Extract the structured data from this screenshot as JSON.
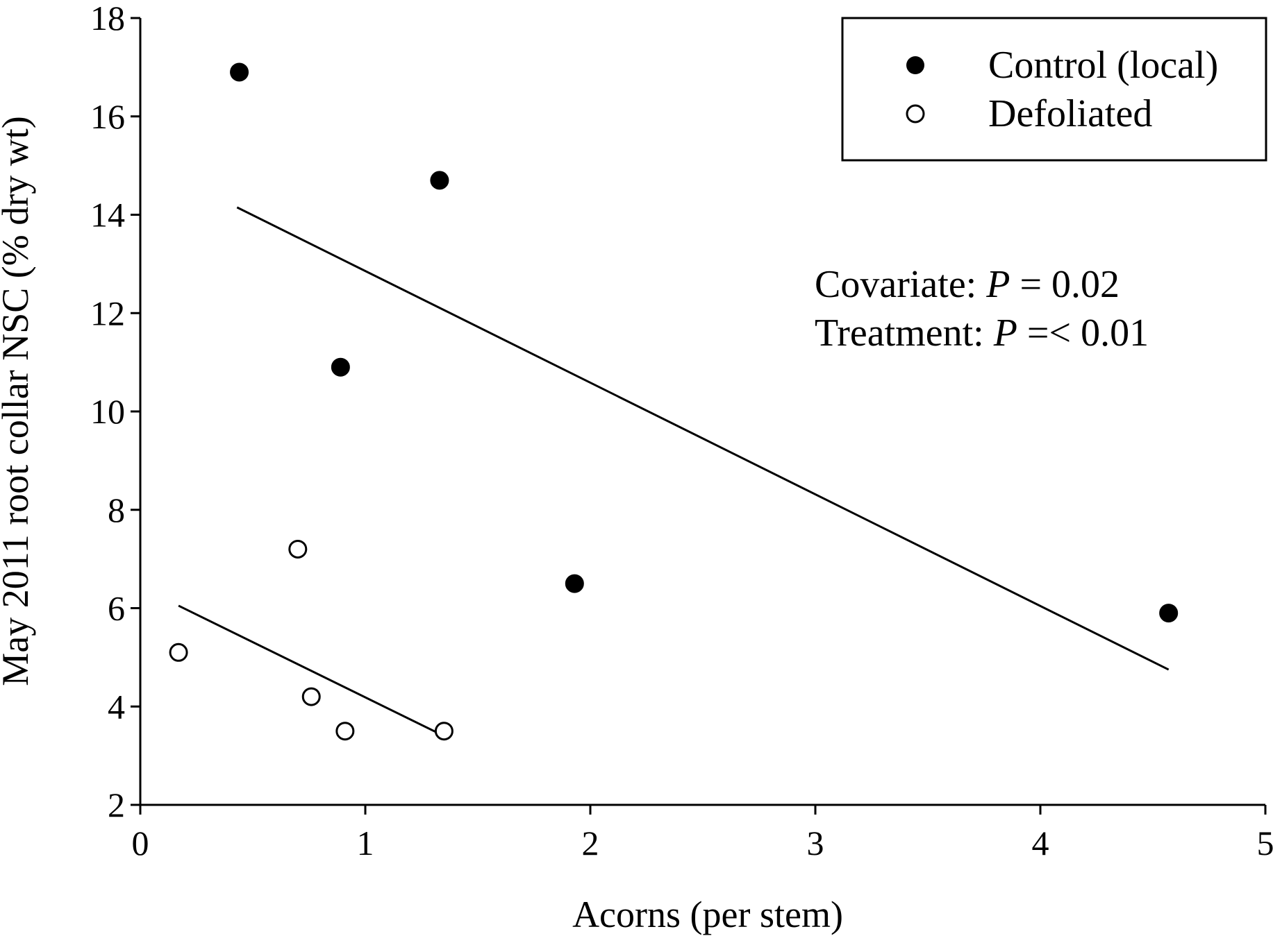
{
  "chart_data": {
    "type": "scatter",
    "title": "",
    "xlabel": "Acorns (per stem)",
    "ylabel": "May 2011 root collar NSC (% dry wt)",
    "xlim": [
      0,
      5
    ],
    "ylim": [
      2,
      18
    ],
    "xticks": [
      0,
      1,
      2,
      3,
      4,
      5
    ],
    "yticks": [
      2,
      4,
      6,
      8,
      10,
      12,
      14,
      16,
      18
    ],
    "grid": false,
    "legend_position": "top-right",
    "series": [
      {
        "name": "Control (local)",
        "marker": "filled-circle",
        "color": "#000000",
        "points": [
          {
            "x": 0.44,
            "y": 16.9
          },
          {
            "x": 1.33,
            "y": 14.7
          },
          {
            "x": 0.89,
            "y": 10.9
          },
          {
            "x": 1.93,
            "y": 6.5
          },
          {
            "x": 4.57,
            "y": 5.9
          }
        ],
        "fit_line": {
          "x": [
            0.43,
            4.57
          ],
          "y": [
            14.15,
            4.75
          ]
        }
      },
      {
        "name": "Defoliated",
        "marker": "open-circle",
        "color": "#000000",
        "points": [
          {
            "x": 0.17,
            "y": 5.1
          },
          {
            "x": 0.7,
            "y": 7.2
          },
          {
            "x": 0.76,
            "y": 4.2
          },
          {
            "x": 0.91,
            "y": 3.5
          },
          {
            "x": 1.35,
            "y": 3.5
          }
        ],
        "fit_line": {
          "x": [
            0.17,
            1.35
          ],
          "y": [
            6.05,
            3.4
          ]
        }
      }
    ],
    "annotations": {
      "covariate_label": "Covariate: ",
      "covariate_p": "P",
      "covariate_value": " = 0.02",
      "treatment_label": "Treatment: ",
      "treatment_p": "P",
      "treatment_value": " =< 0.01"
    }
  }
}
